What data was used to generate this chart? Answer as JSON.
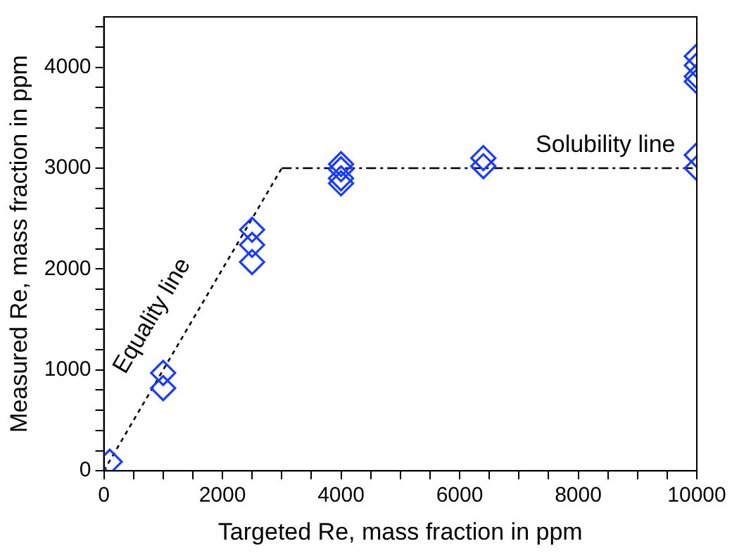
{
  "chart_data": {
    "type": "scatter",
    "xlabel": "Targeted Re, mass fraction in ppm",
    "ylabel": "Measured Re, mass fraction in ppm",
    "xlim": [
      0,
      10000
    ],
    "ylim": [
      0,
      4500
    ],
    "xticks": [
      0,
      {
        "value": 500,
        "label": null
      },
      {
        "value": 1000,
        "label": null
      },
      {
        "value": 1500,
        "label": null
      },
      2000,
      {
        "value": 2500,
        "label": null
      },
      {
        "value": 3000,
        "label": null
      },
      {
        "value": 3500,
        "label": null
      },
      4000,
      {
        "value": 4500,
        "label": null
      },
      {
        "value": 5000,
        "label": null
      },
      {
        "value": 5500,
        "label": null
      },
      6000,
      {
        "value": 6500,
        "label": null
      },
      {
        "value": 7000,
        "label": null
      },
      {
        "value": 7500,
        "label": null
      },
      8000,
      {
        "value": 8500,
        "label": null
      },
      {
        "value": 9000,
        "label": null
      },
      {
        "value": 9500,
        "label": null
      },
      10000
    ],
    "yticks": [
      0,
      {
        "value": 200,
        "label": null
      },
      {
        "value": 400,
        "label": null
      },
      {
        "value": 600,
        "label": null
      },
      {
        "value": 800,
        "label": null
      },
      1000,
      {
        "value": 1200,
        "label": null
      },
      {
        "value": 1400,
        "label": null
      },
      {
        "value": 1600,
        "label": null
      },
      {
        "value": 1800,
        "label": null
      },
      2000,
      {
        "value": 2200,
        "label": null
      },
      {
        "value": 2400,
        "label": null
      },
      {
        "value": 2600,
        "label": null
      },
      {
        "value": 2800,
        "label": null
      },
      3000,
      {
        "value": 3200,
        "label": null
      },
      {
        "value": 3400,
        "label": null
      },
      {
        "value": 3600,
        "label": null
      },
      {
        "value": 3800,
        "label": null
      },
      4000,
      {
        "value": 4200,
        "label": null
      },
      {
        "value": 4400,
        "label": null
      }
    ],
    "grid": false,
    "legend": false,
    "marker": "diamond",
    "annotations": [
      "Equality line",
      "Solubility line"
    ],
    "series": [
      {
        "color": "#1a3cff",
        "x": [
          100,
          1000,
          1000,
          2500,
          2500,
          2500,
          4000,
          4000,
          4000,
          4000,
          6400,
          6400,
          10000,
          10000,
          10000,
          10000,
          10000,
          10000
        ],
        "values": [
          90,
          970,
          820,
          2390,
          2240,
          2070,
          3040,
          2990,
          2900,
          2850,
          3100,
          3020,
          4110,
          4020,
          3910,
          3860,
          3130,
          3000
        ]
      },
      {
        "type": "line",
        "color": "#000000",
        "line_style": "dotted",
        "marker": "none",
        "x": [
          0,
          3000
        ],
        "values": [
          0,
          3000
        ]
      },
      {
        "type": "line",
        "color": "#000000",
        "line_style": "dashed",
        "marker": "none",
        "x": [
          3000,
          10000
        ],
        "values": [
          3000,
          3000
        ]
      }
    ]
  }
}
